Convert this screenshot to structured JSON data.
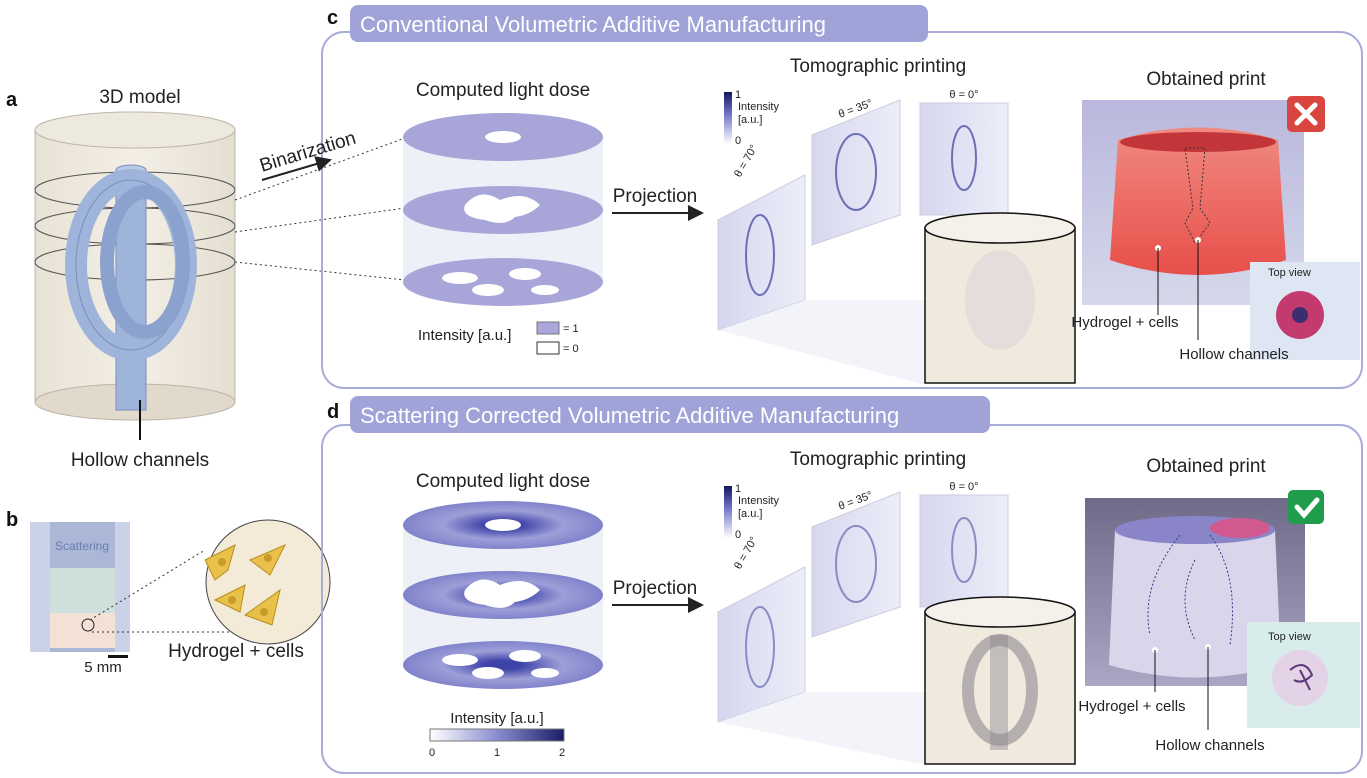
{
  "panels": {
    "a": {
      "letter": "a",
      "title": "3D model",
      "label": "Hollow channels"
    },
    "b": {
      "letter": "b",
      "tube_text": "Scattering",
      "scale": "5 mm",
      "label": "Hydrogel + cells"
    },
    "c": {
      "letter": "c",
      "header": "Conventional Volumetric Additive Manufacturing",
      "binarization": "Binarization",
      "dose_title": "Computed light dose",
      "legend_title": "Intensity [a.u.]",
      "legend_one": "= 1",
      "legend_zero": "= 0",
      "projection": "Projection",
      "tomo_title": "Tomographic printing",
      "colorbar": {
        "max": "1",
        "min": "0",
        "title1": "Intensity",
        "title2": "[a.u.]"
      },
      "angles": [
        "θ = 70°",
        "θ = 35°",
        "θ = 0°"
      ],
      "print_title": "Obtained print",
      "status": "fail",
      "top_view": "Top view",
      "hydrogel": "Hydrogel + cells",
      "hollow": "Hollow channels"
    },
    "d": {
      "letter": "d",
      "header": "Scattering Corrected Volumetric Additive Manufacturing",
      "dose_title": "Computed light dose",
      "legend_title": "Intensity [a.u.]",
      "legend_ticks": [
        "0",
        "1",
        "2"
      ],
      "projection": "Projection",
      "tomo_title": "Tomographic printing",
      "colorbar": {
        "max": "1",
        "min": "0",
        "title1": "Intensity",
        "title2": "[a.u.]"
      },
      "angles": [
        "θ = 70°",
        "θ = 35°",
        "θ = 0°"
      ],
      "print_title": "Obtained print",
      "status": "success",
      "top_view": "Top view",
      "hydrogel": "Hydrogel + cells",
      "hollow": "Hollow channels"
    }
  },
  "colors": {
    "header": "#9fa3d8",
    "frame": "#a9acd8",
    "dose": "#a8a6d8",
    "fail": "#d9463f",
    "success": "#1f9d4d"
  }
}
